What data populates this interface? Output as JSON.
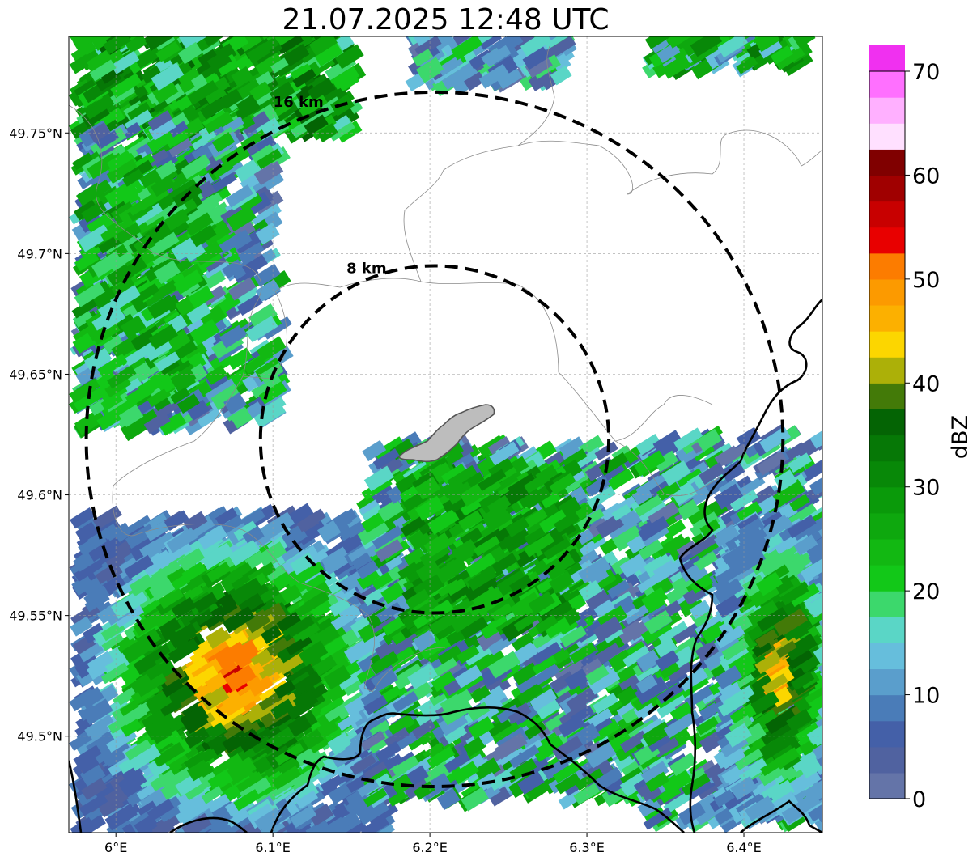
{
  "title": "21.07.2025 12:48 UTC",
  "map": {
    "lon_range": [
      5.97,
      6.45
    ],
    "lat_range": [
      49.46,
      49.79
    ],
    "lon_ticks": [
      {
        "value": 6.0,
        "label": "6°E"
      },
      {
        "value": 6.1,
        "label": "6.1°E"
      },
      {
        "value": 6.2,
        "label": "6.2°E"
      },
      {
        "value": 6.3,
        "label": "6.3°E"
      },
      {
        "value": 6.4,
        "label": "6.4°E"
      }
    ],
    "lat_ticks": [
      {
        "value": 49.5,
        "label": "49.5°N"
      },
      {
        "value": 49.55,
        "label": "49.55°N"
      },
      {
        "value": 49.6,
        "label": "49.6°N"
      },
      {
        "value": 49.65,
        "label": "49.65°N"
      },
      {
        "value": 49.7,
        "label": "49.7°N"
      },
      {
        "value": 49.75,
        "label": "49.75°N"
      }
    ],
    "gridlines": true,
    "radar_center": {
      "lon": 6.203,
      "lat": 49.623
    },
    "range_rings": [
      {
        "radius_km": 8,
        "label": "8 km"
      },
      {
        "radius_km": 16,
        "label": "16 km"
      }
    ]
  },
  "colorbar": {
    "label": "dBZ",
    "min": 0,
    "max": 70,
    "ticks": [
      "0",
      "10",
      "20",
      "30",
      "40",
      "50",
      "60",
      "70"
    ],
    "colors": [
      "#6474a8",
      "#5062a0",
      "#4460a8",
      "#4a7cb8",
      "#5a9ecc",
      "#66bedc",
      "#5ad6c6",
      "#3cd86c",
      "#12c818",
      "#12b812",
      "#0ea80e",
      "#0a9a0a",
      "#088808",
      "#067806",
      "#046404",
      "#437a08",
      "#acb008",
      "#fcd600",
      "#fcb000",
      "#fc9a00",
      "#fc7c00",
      "#e80000",
      "#c80000",
      "#a00000",
      "#800000",
      "#ffe0ff",
      "#ffb0ff",
      "#ff70ff",
      "#f030f0"
    ]
  }
}
